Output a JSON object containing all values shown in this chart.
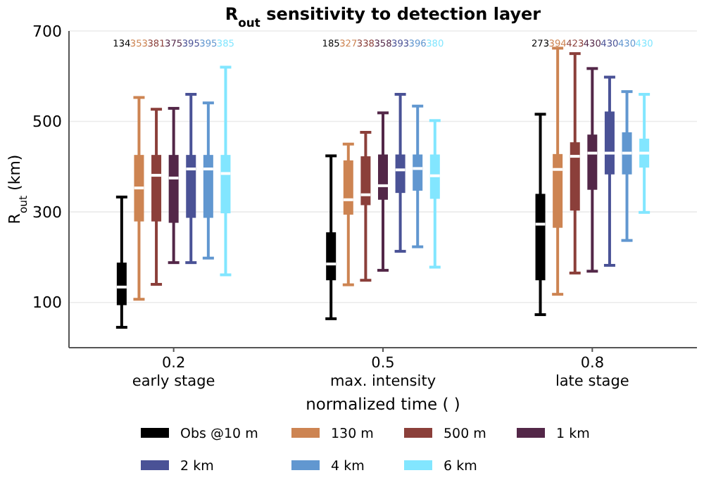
{
  "chart_data": {
    "type": "box",
    "title": "R$_{out}$ sensitivity to detection layer",
    "xlabel": "normalized time ( )",
    "ylabel": "R$_{out}$ (km)",
    "categories": [
      "0.2\nearly stage",
      "0.5\nmax. intensity",
      "0.8\nlate stage"
    ],
    "ylim": [
      0,
      700
    ],
    "yticks": [
      100,
      300,
      500,
      700
    ],
    "grid": "y",
    "legend": "bottom",
    "series": [
      {
        "name": "Obs @10 m",
        "color": "#000000",
        "value_labels": [
          "134",
          "185",
          "273"
        ],
        "boxes": [
          {
            "low": 45,
            "q1": 94,
            "median": 134,
            "q3": 188,
            "high": 333
          },
          {
            "low": 64,
            "q1": 149,
            "median": 185,
            "q3": 255,
            "high": 424
          },
          {
            "low": 73,
            "q1": 149,
            "median": 273,
            "q3": 340,
            "high": 516
          }
        ]
      },
      {
        "name": "130 m",
        "color": "#cd8452",
        "value_labels": [
          "353",
          "327",
          "394"
        ],
        "boxes": [
          {
            "low": 107,
            "q1": 279,
            "median": 353,
            "q3": 426,
            "high": 553
          },
          {
            "low": 139,
            "q1": 294,
            "median": 327,
            "q3": 414,
            "high": 450
          },
          {
            "low": 118,
            "q1": 265,
            "median": 394,
            "q3": 428,
            "high": 662
          }
        ]
      },
      {
        "name": "500 m",
        "color": "#8b3f3a",
        "value_labels": [
          "381",
          "338",
          "423"
        ],
        "boxes": [
          {
            "low": 140,
            "q1": 279,
            "median": 381,
            "q3": 426,
            "high": 527
          },
          {
            "low": 149,
            "q1": 315,
            "median": 338,
            "q3": 423,
            "high": 476
          },
          {
            "low": 165,
            "q1": 303,
            "median": 423,
            "q3": 454,
            "high": 650
          }
        ]
      },
      {
        "name": "1 km",
        "color": "#532748",
        "value_labels": [
          "375",
          "358",
          "430"
        ],
        "boxes": [
          {
            "low": 188,
            "q1": 276,
            "median": 375,
            "q3": 426,
            "high": 529
          },
          {
            "low": 171,
            "q1": 327,
            "median": 358,
            "q3": 427,
            "high": 519
          },
          {
            "low": 169,
            "q1": 349,
            "median": 430,
            "q3": 471,
            "high": 617
          }
        ]
      },
      {
        "name": "2 km",
        "color": "#4a5296",
        "value_labels": [
          "395",
          "393",
          "430"
        ],
        "boxes": [
          {
            "low": 188,
            "q1": 287,
            "median": 395,
            "q3": 426,
            "high": 560
          },
          {
            "low": 213,
            "q1": 342,
            "median": 393,
            "q3": 427,
            "high": 560
          },
          {
            "low": 182,
            "q1": 383,
            "median": 430,
            "q3": 522,
            "high": 598
          }
        ]
      },
      {
        "name": "4 km",
        "color": "#6197d0",
        "value_labels": [
          "395",
          "396",
          "430"
        ],
        "boxes": [
          {
            "low": 198,
            "q1": 287,
            "median": 395,
            "q3": 426,
            "high": 541
          },
          {
            "low": 223,
            "q1": 347,
            "median": 396,
            "q3": 427,
            "high": 534
          },
          {
            "low": 237,
            "q1": 383,
            "median": 430,
            "q3": 476,
            "high": 566
          }
        ]
      },
      {
        "name": "6 km",
        "color": "#82e6ff",
        "value_labels": [
          "385",
          "380",
          "430"
        ],
        "boxes": [
          {
            "low": 161,
            "q1": 297,
            "median": 385,
            "q3": 426,
            "high": 620
          },
          {
            "low": 178,
            "q1": 329,
            "median": 380,
            "q3": 427,
            "high": 502
          },
          {
            "low": 299,
            "q1": 398,
            "median": 430,
            "q3": 462,
            "high": 560
          }
        ]
      }
    ]
  }
}
